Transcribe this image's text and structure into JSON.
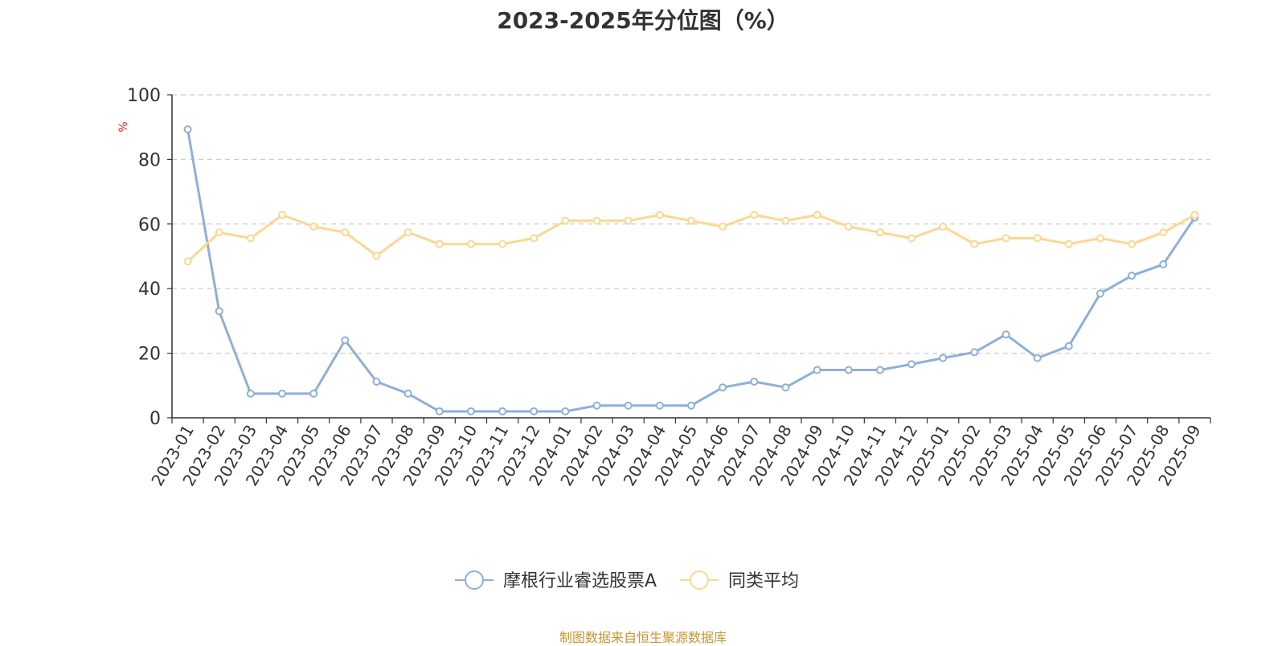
{
  "chart_data": {
    "type": "line",
    "title": "2023-2025年分位图（%）",
    "ylabel": "%",
    "ylim": [
      0,
      100
    ],
    "yticks": [
      0,
      20,
      40,
      60,
      80,
      100
    ],
    "grid": true,
    "legend_position": "bottom-center",
    "categories": [
      "2023-01",
      "2023-02",
      "2023-03",
      "2023-04",
      "2023-05",
      "2023-06",
      "2023-07",
      "2023-08",
      "2023-09",
      "2023-10",
      "2023-11",
      "2023-12",
      "2024-01",
      "2024-02",
      "2024-03",
      "2024-04",
      "2024-05",
      "2024-06",
      "2024-07",
      "2024-08",
      "2024-09",
      "2024-10",
      "2024-11",
      "2024-12",
      "2025-01",
      "2025-02",
      "2025-03",
      "2025-04",
      "2025-05",
      "2025-06",
      "2025-07",
      "2025-08",
      "2025-09"
    ],
    "series": [
      {
        "name": "摩根行业睿选股票A",
        "color": "#8eafd9",
        "values": [
          89.3,
          33.0,
          7.5,
          7.5,
          7.5,
          24.0,
          11.2,
          7.5,
          2.0,
          2.0,
          2.0,
          2.0,
          2.0,
          3.8,
          3.8,
          3.8,
          3.8,
          9.4,
          11.2,
          9.4,
          14.8,
          14.8,
          14.8,
          16.6,
          18.5,
          20.3,
          25.8,
          18.5,
          22.2,
          38.5,
          44.0,
          47.5,
          62.0
        ]
      },
      {
        "name": "同类平均",
        "color": "#fdd790",
        "values": [
          48.4,
          57.4,
          55.6,
          62.8,
          59.2,
          57.4,
          50.2,
          57.4,
          53.8,
          53.8,
          53.8,
          55.6,
          61.0,
          61.0,
          61.0,
          62.8,
          61.0,
          59.2,
          62.8,
          61.0,
          62.8,
          59.2,
          57.4,
          55.6,
          59.2,
          53.8,
          55.6,
          55.6,
          53.8,
          55.6,
          53.8,
          57.4,
          62.8
        ]
      }
    ]
  },
  "source_text": "制图数据来自恒生聚源数据库"
}
